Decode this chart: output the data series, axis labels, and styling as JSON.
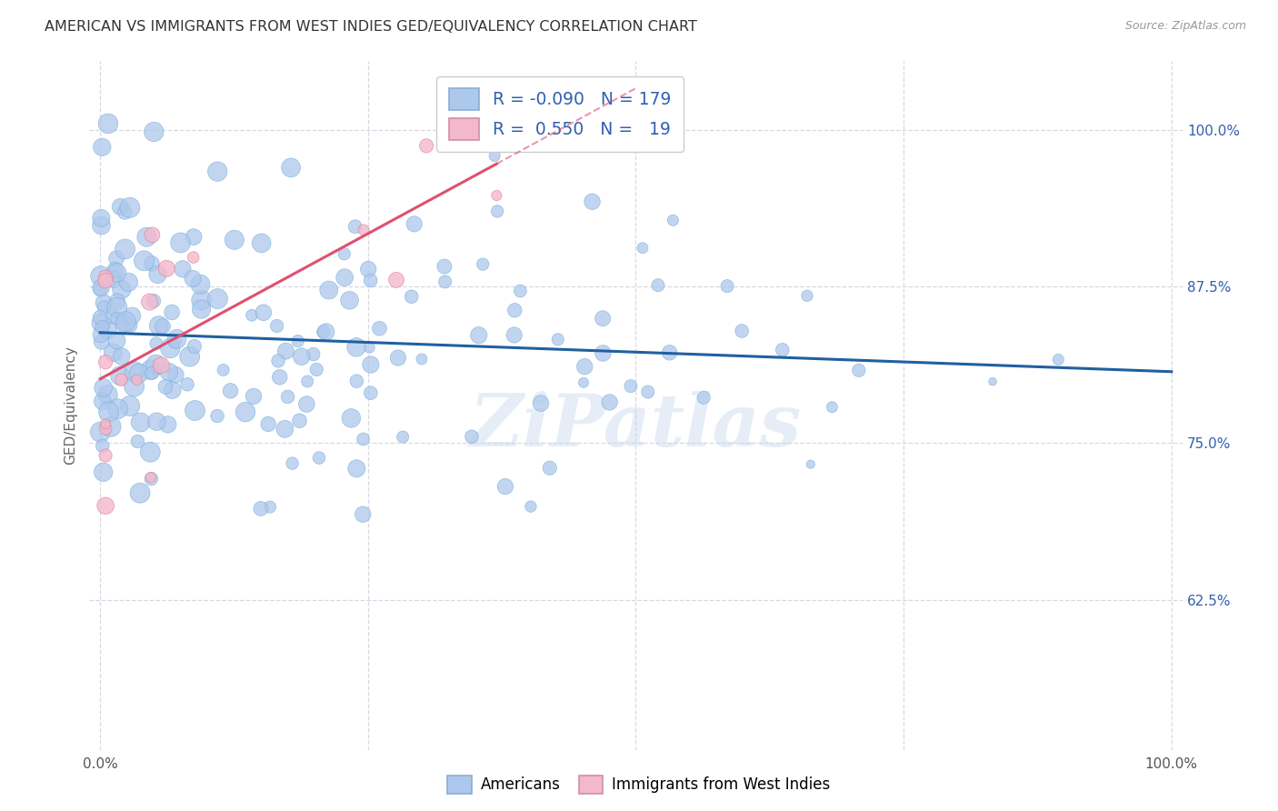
{
  "title": "AMERICAN VS IMMIGRANTS FROM WEST INDIES GED/EQUIVALENCY CORRELATION CHART",
  "source": "Source: ZipAtlas.com",
  "ylabel": "GED/Equivalency",
  "legend_r_american": "-0.090",
  "legend_n_american": "179",
  "legend_r_immigrant": "0.550",
  "legend_n_immigrant": "19",
  "american_color": "#adc8ed",
  "american_edge_color": "#7aaed6",
  "american_line_color": "#2060a0",
  "immigrant_color": "#f4b8cc",
  "immigrant_edge_color": "#e08090",
  "immigrant_line_color": "#e05070",
  "background_color": "#ffffff",
  "grid_color": "#d8d8e4",
  "watermark": "ZiPatlas",
  "title_color": "#333333",
  "source_color": "#999999",
  "ylabel_color": "#666666",
  "tick_color": "#555555",
  "legend_r_color": "#3060b0",
  "xlim": [
    -0.01,
    1.01
  ],
  "ylim": [
    0.505,
    1.055
  ],
  "yticks": [
    0.625,
    0.75,
    0.875,
    1.0
  ],
  "ytick_labels": [
    "62.5%",
    "75.0%",
    "87.5%",
    "100.0%"
  ],
  "xticks": [
    0.0,
    0.25,
    0.5,
    0.75,
    1.0
  ],
  "xtick_labels_show": [
    "0.0%",
    "",
    "",
    "",
    "100.0%"
  ]
}
